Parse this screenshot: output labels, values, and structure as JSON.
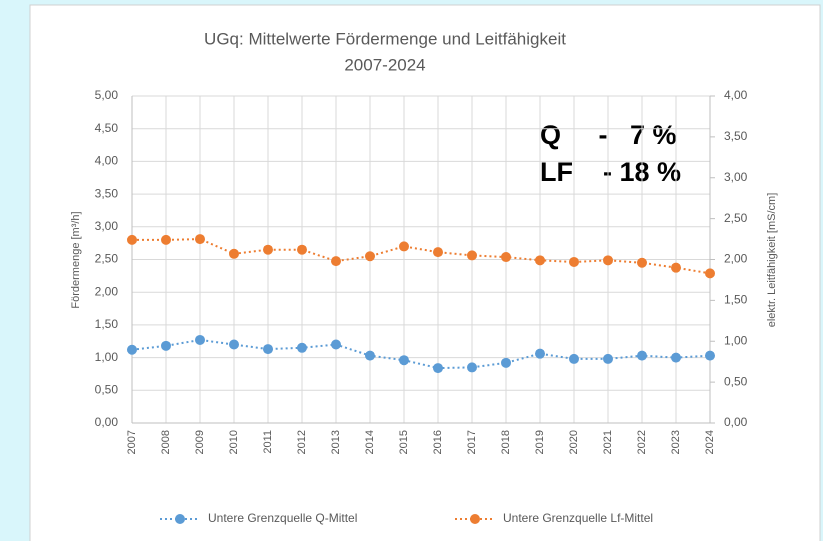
{
  "chart_data": {
    "type": "line",
    "title": "UGq: Mittelwerte Fördermenge und Leitfähigkeit",
    "subtitle": "2007-2024",
    "y_label": "Fördermenge  [m³/h]",
    "y2_label": "elektr. Leitfähigkeit [mS/cm]",
    "annotations": [
      "Q     -   7 %",
      "LF    - 18 %"
    ],
    "categories": [
      "2007",
      "2008",
      "2009",
      "2010",
      "2011",
      "2012",
      "2013",
      "2014",
      "2015",
      "2016",
      "2017",
      "2018",
      "2019",
      "2020",
      "2021",
      "2022",
      "2023",
      "2024"
    ],
    "series": [
      {
        "name": "Untere Grenzquelle Q-Mittel",
        "color": "#5b9bd5",
        "axis": "y",
        "values": [
          1.12,
          1.18,
          1.27,
          1.2,
          1.13,
          1.15,
          1.2,
          1.03,
          0.96,
          0.84,
          0.85,
          0.92,
          1.06,
          0.98,
          0.98,
          1.03,
          1.0,
          1.03
        ]
      },
      {
        "name": "Untere Grenzquelle Lf-Mittel",
        "color": "#ed7d31",
        "axis": "y2",
        "values": [
          2.24,
          2.24,
          2.25,
          2.07,
          2.12,
          2.12,
          1.98,
          2.04,
          2.16,
          2.09,
          2.05,
          2.03,
          1.99,
          1.97,
          1.99,
          1.96,
          1.9,
          1.83
        ]
      }
    ],
    "ylim": [
      0,
      5
    ],
    "yticks": [
      {
        "value": 0,
        "label": "0,00"
      },
      {
        "value": 0.5,
        "label": "0,50"
      },
      {
        "value": 1,
        "label": "1,00"
      },
      {
        "value": 1.5,
        "label": "1,50"
      },
      {
        "value": 2,
        "label": "2,00"
      },
      {
        "value": 2.5,
        "label": "2,50"
      },
      {
        "value": 3,
        "label": "3,00"
      },
      {
        "value": 3.5,
        "label": "3,50"
      },
      {
        "value": 4,
        "label": "4,00"
      },
      {
        "value": 4.5,
        "label": "4,50"
      },
      {
        "value": 5,
        "label": "5,00"
      }
    ],
    "y2lim": [
      0,
      4
    ],
    "y2ticks": [
      {
        "value": 0,
        "label": "0,00"
      },
      {
        "value": 0.5,
        "label": "0,50"
      },
      {
        "value": 1,
        "label": "1,00"
      },
      {
        "value": 1.5,
        "label": "1,50"
      },
      {
        "value": 2,
        "label": "2,00"
      },
      {
        "value": 2.5,
        "label": "2,50"
      },
      {
        "value": 3,
        "label": "3,00"
      },
      {
        "value": 3.5,
        "label": "3,50"
      },
      {
        "value": 4,
        "label": "4,00"
      }
    ],
    "grid": true,
    "legend": "bottom"
  }
}
